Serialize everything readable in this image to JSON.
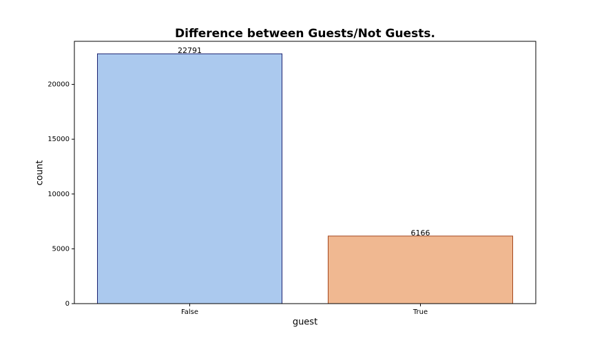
{
  "chart_data": {
    "type": "bar",
    "title": "Difference between Guests/Not Guests.",
    "x_label": "guest",
    "y_label": "count",
    "categories": [
      "False",
      "True"
    ],
    "values": [
      22791,
      6166
    ],
    "colors": [
      "#abc9ee",
      "#f0b891"
    ],
    "edgecolors": [
      "#1a1f6e",
      "#a3461d"
    ],
    "ylim": [
      0,
      23930
    ],
    "yticks": [
      0,
      5000,
      10000,
      15000,
      20000
    ]
  }
}
